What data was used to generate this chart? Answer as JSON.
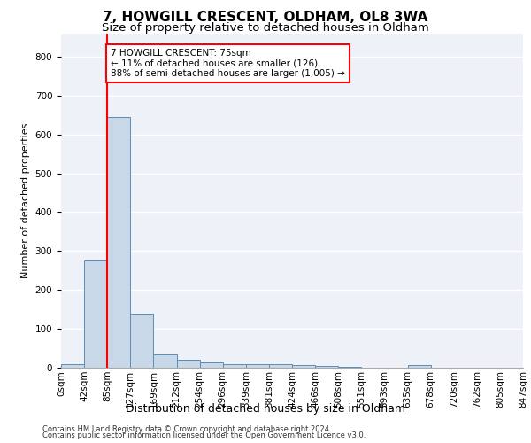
{
  "title1": "7, HOWGILL CRESCENT, OLDHAM, OL8 3WA",
  "title2": "Size of property relative to detached houses in Oldham",
  "xlabel": "Distribution of detached houses by size in Oldham",
  "ylabel": "Number of detached properties",
  "bin_labels": [
    "0sqm",
    "42sqm",
    "85sqm",
    "127sqm",
    "169sqm",
    "212sqm",
    "254sqm",
    "296sqm",
    "339sqm",
    "381sqm",
    "424sqm",
    "466sqm",
    "508sqm",
    "551sqm",
    "593sqm",
    "635sqm",
    "678sqm",
    "720sqm",
    "762sqm",
    "805sqm",
    "847sqm"
  ],
  "bar_values": [
    8,
    275,
    645,
    138,
    35,
    20,
    13,
    10,
    10,
    9,
    6,
    4,
    2,
    1,
    1,
    6,
    1,
    1,
    1,
    1
  ],
  "bar_color": "#c8d8e8",
  "bar_edge_color": "#5b8db8",
  "property_line_x": 2,
  "annotation_text": "7 HOWGILL CRESCENT: 75sqm\n← 11% of detached houses are smaller (126)\n88% of semi-detached houses are larger (1,005) →",
  "annotation_box_color": "white",
  "annotation_box_edge": "red",
  "red_line_color": "red",
  "footer1": "Contains HM Land Registry data © Crown copyright and database right 2024.",
  "footer2": "Contains public sector information licensed under the Open Government Licence v3.0.",
  "ylim": [
    0,
    860
  ],
  "background_color": "#eef2f8",
  "grid_color": "white",
  "title1_fontsize": 11,
  "title2_fontsize": 9.5,
  "xlabel_fontsize": 9,
  "ylabel_fontsize": 8,
  "tick_fontsize": 7.5,
  "footer_fontsize": 6,
  "annotation_fontsize": 7.5
}
